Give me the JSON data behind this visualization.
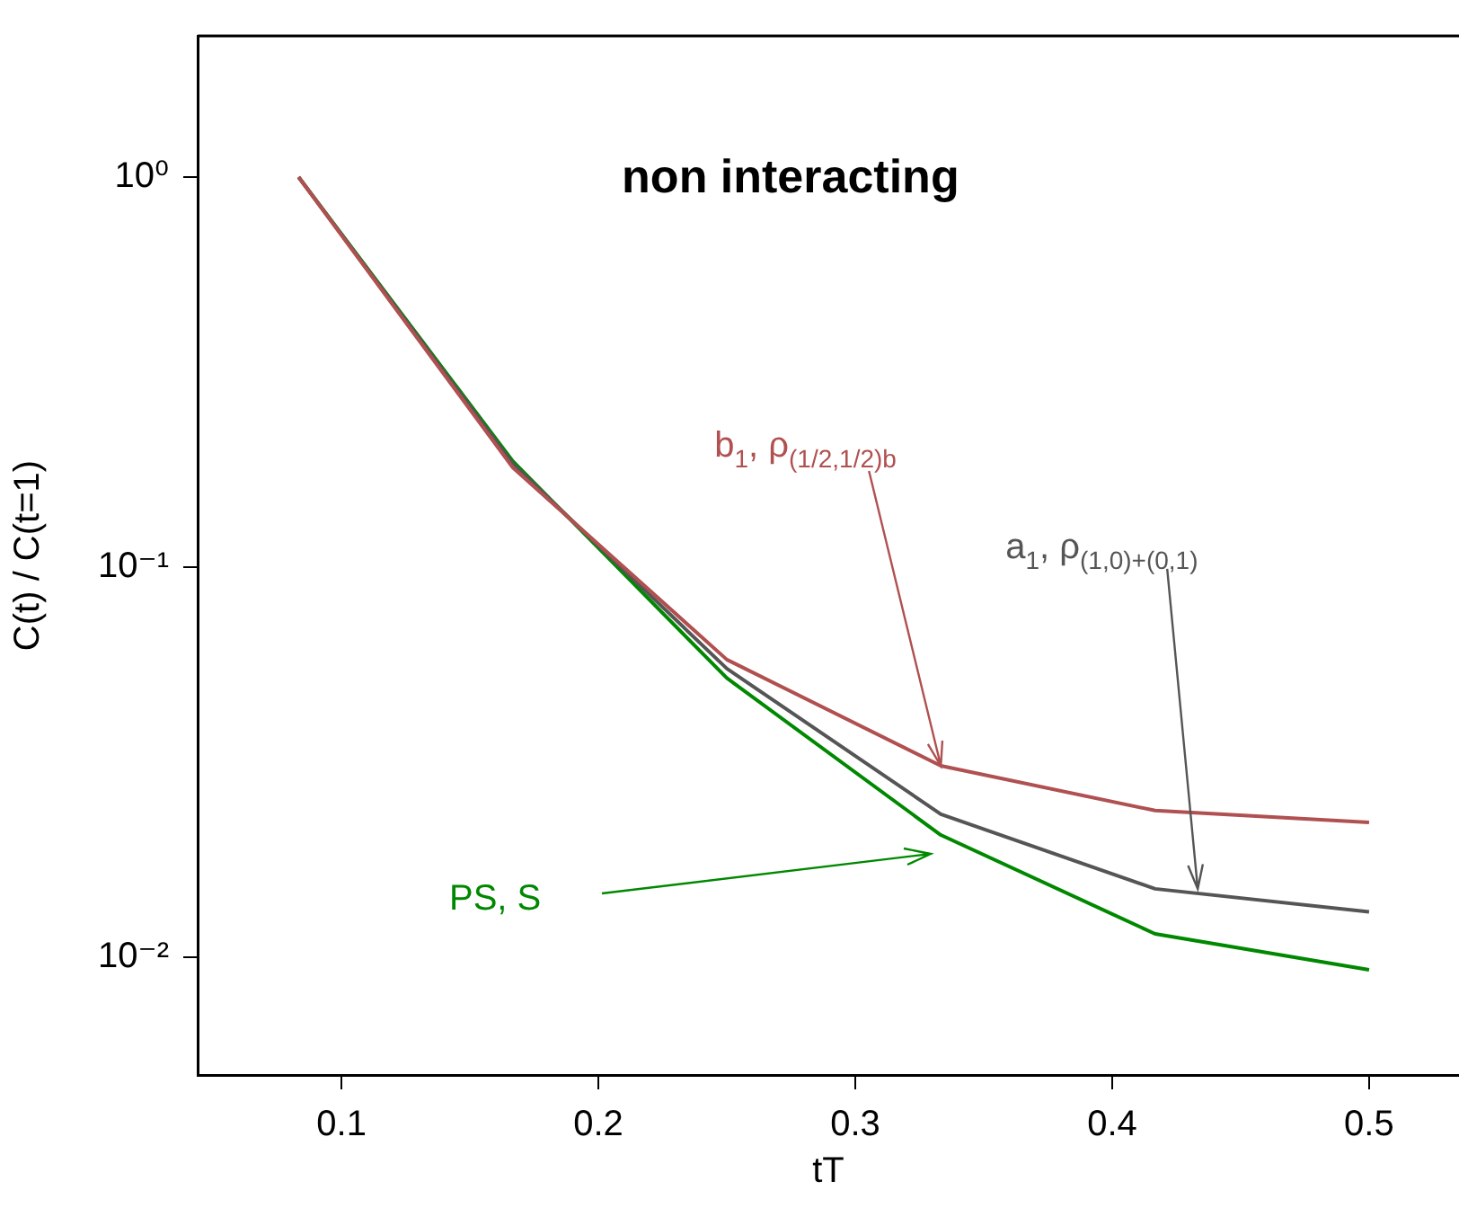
{
  "chart_data": {
    "type": "line",
    "title": "non interacting",
    "xlabel": "tT",
    "ylabel": "C(t) / C(t=1)",
    "x": [
      0.0833,
      0.1667,
      0.25,
      0.3333,
      0.4167,
      0.5
    ],
    "series": [
      {
        "color": "#b05050",
        "values": [
          1,
          0.18,
          0.058,
          0.031,
          0.0238,
          0.0222
        ]
      },
      {
        "color": "#555555",
        "values": [
          1,
          0.184,
          0.055,
          0.0233,
          0.015,
          0.0131
        ]
      },
      {
        "color": "#008800",
        "values": [
          1,
          0.187,
          0.052,
          0.0206,
          0.0115,
          0.0093
        ]
      }
    ],
    "log": "y",
    "xlim": [
      0.044,
      0.535
    ],
    "ylim": [
      0.005,
      2.3
    ],
    "xticks": [
      0.1,
      0.2,
      0.3,
      0.4,
      0.5
    ],
    "yticks": [
      {
        "value": 0.01,
        "label": "10⁻²"
      },
      {
        "value": 0.1,
        "label": "10⁻¹"
      },
      {
        "value": 1,
        "label": "10⁰"
      }
    ],
    "grid": false,
    "legend": false,
    "line_style": "solid",
    "marker": "none",
    "annotations": [
      {
        "text": "b$_{1}$, ρ$_{(1/2,1/2)b}$",
        "x": 0.3333,
        "y": 0.031
      },
      {
        "text": "a$_{1}$, ρ$_{(1,0)+(0,1)}$",
        "x": 0.4333,
        "y": 0.015
      },
      "PS, S"
    ]
  }
}
